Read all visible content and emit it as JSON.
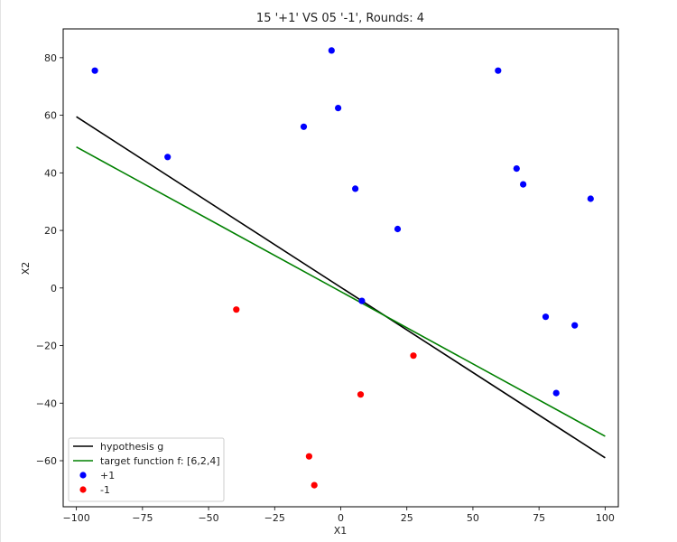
{
  "chart_data": {
    "type": "scatter",
    "title": "15 '+1' VS 05 '-1', Rounds: 4",
    "xlabel": "X1",
    "ylabel": "X2",
    "xlim": [
      -105,
      105
    ],
    "ylim": [
      -76,
      90
    ],
    "xticks": [
      -100,
      -75,
      -50,
      -25,
      0,
      25,
      50,
      75,
      100
    ],
    "yticks": [
      -60,
      -40,
      -20,
      0,
      20,
      40,
      60,
      80
    ],
    "grid": false,
    "legend_position": "lower-left",
    "series": [
      {
        "name": "+1",
        "kind": "scatter",
        "color": "#0000ff",
        "points": [
          {
            "x": -93,
            "y": 75.5
          },
          {
            "x": -65.5,
            "y": 45.5
          },
          {
            "x": -14,
            "y": 56
          },
          {
            "x": -3.5,
            "y": 82.5
          },
          {
            "x": -1,
            "y": 62.5
          },
          {
            "x": 5.5,
            "y": 34.5
          },
          {
            "x": 8,
            "y": -4.5
          },
          {
            "x": 21.5,
            "y": 20.5
          },
          {
            "x": 59.5,
            "y": 75.5
          },
          {
            "x": 66.5,
            "y": 41.5
          },
          {
            "x": 69,
            "y": 36
          },
          {
            "x": 94.5,
            "y": 31
          },
          {
            "x": 77.5,
            "y": -10
          },
          {
            "x": 88.5,
            "y": -13
          },
          {
            "x": 81.5,
            "y": -36.5
          }
        ]
      },
      {
        "name": "-1",
        "kind": "scatter",
        "color": "#ff0000",
        "points": [
          {
            "x": -39.5,
            "y": -7.5
          },
          {
            "x": 27.5,
            "y": -23.5
          },
          {
            "x": 7.5,
            "y": -37
          },
          {
            "x": -12,
            "y": -58.5
          },
          {
            "x": -10,
            "y": -68.5
          }
        ]
      },
      {
        "name": "hypothesis g",
        "kind": "line",
        "color": "#000000",
        "points": [
          {
            "x": -100,
            "y": 59.5
          },
          {
            "x": 100,
            "y": -59
          }
        ]
      },
      {
        "name": "target function f: [6,2,4]",
        "kind": "line",
        "color": "#008000",
        "points": [
          {
            "x": -100,
            "y": 49
          },
          {
            "x": 100,
            "y": -51.5
          }
        ]
      }
    ],
    "legend": [
      {
        "label": "hypothesis g",
        "kind": "line",
        "color": "#000000"
      },
      {
        "label": "target function f: [6,2,4]",
        "kind": "line",
        "color": "#008000"
      },
      {
        "label": "+1",
        "kind": "marker",
        "color": "#0000ff"
      },
      {
        "label": "-1",
        "kind": "marker",
        "color": "#ff0000"
      }
    ]
  }
}
